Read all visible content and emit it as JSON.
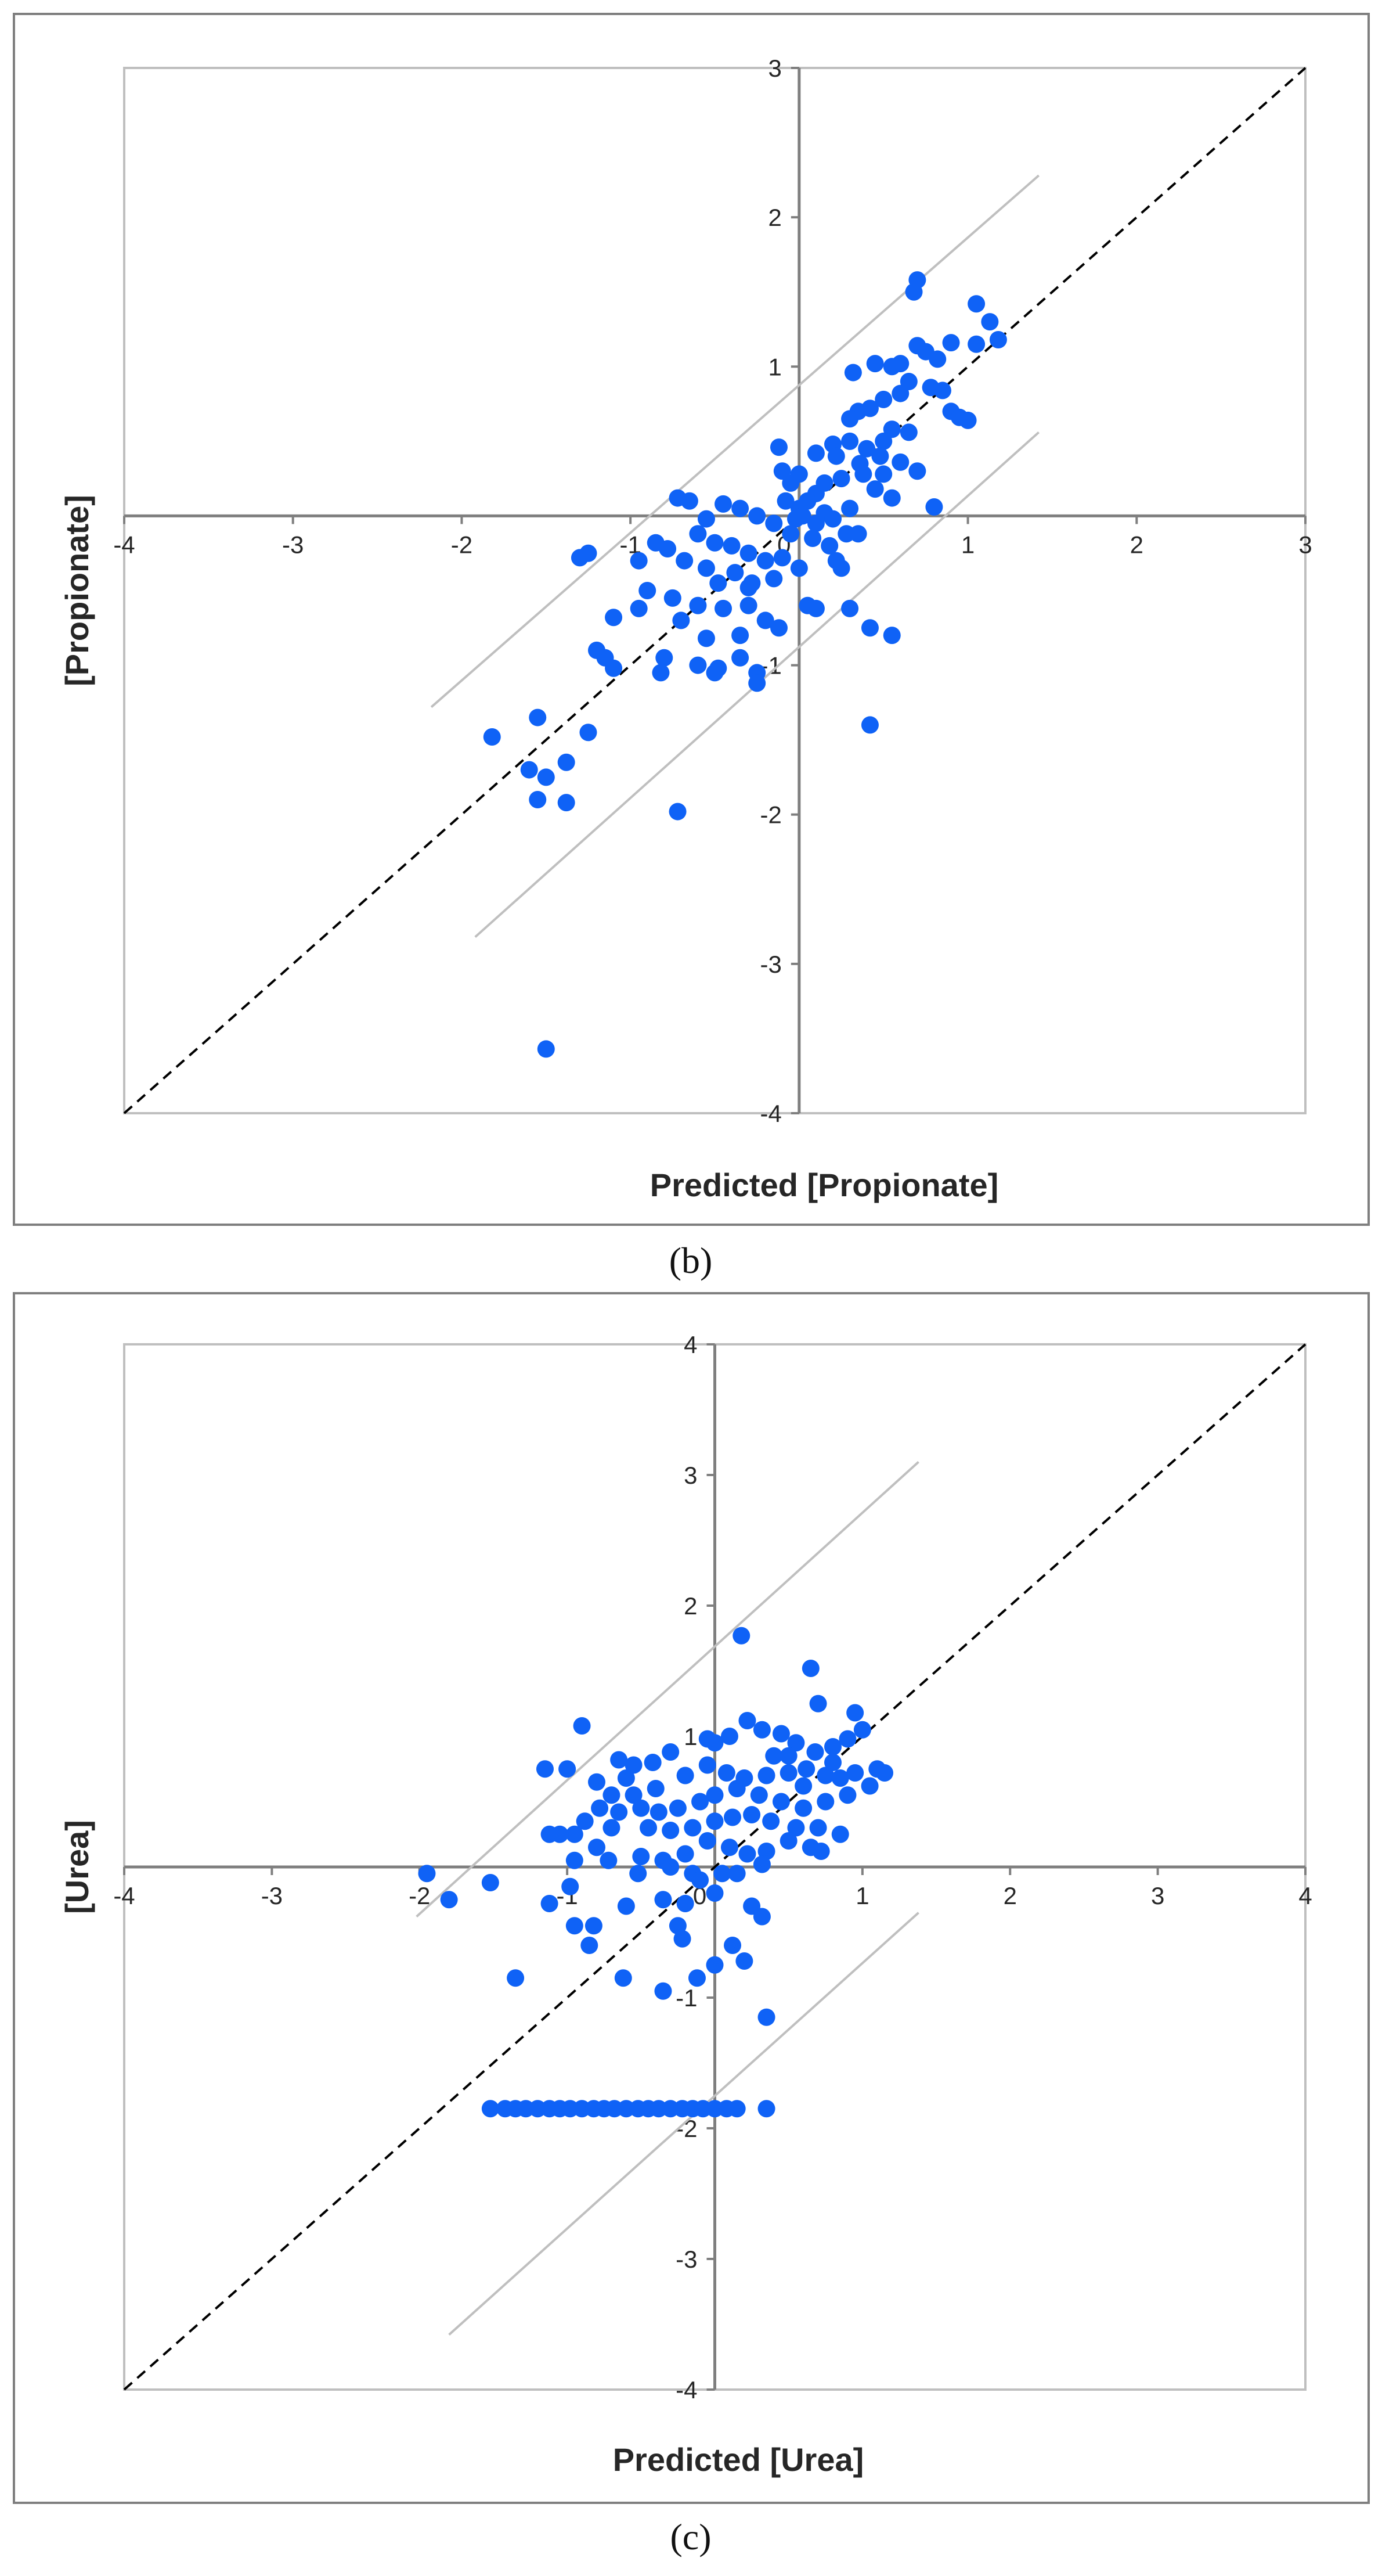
{
  "chart_data": [
    {
      "type": "scatter",
      "panel_label": "(b)",
      "xlabel": "Predicted [Propionate]",
      "ylabel": "[Propionate]",
      "xlim": [
        -4,
        3
      ],
      "ylim": [
        -4,
        3
      ],
      "xticks": [
        -4,
        -3,
        -2,
        -1,
        0,
        1,
        2,
        3
      ],
      "yticks": [
        -4,
        -3,
        -2,
        -1,
        0,
        1,
        2,
        3
      ],
      "identity_line": {
        "x": [
          -4,
          3
        ],
        "y": [
          -4,
          3
        ]
      },
      "band_lines": [
        {
          "x": [
            -2.18,
            1.42
          ],
          "y": [
            -1.28,
            2.28
          ]
        },
        {
          "x": [
            -1.92,
            1.42
          ],
          "y": [
            -2.82,
            0.56
          ]
        }
      ],
      "points": [
        [
          0.7,
          1.58
        ],
        [
          0.68,
          1.5
        ],
        [
          1.05,
          1.42
        ],
        [
          1.13,
          1.3
        ],
        [
          1.18,
          1.18
        ],
        [
          1.05,
          1.15
        ],
        [
          0.9,
          1.16
        ],
        [
          0.7,
          1.14
        ],
        [
          0.75,
          1.1
        ],
        [
          0.6,
          1.02
        ],
        [
          0.55,
          1.0
        ],
        [
          0.45,
          1.02
        ],
        [
          0.82,
          1.05
        ],
        [
          0.32,
          0.96
        ],
        [
          0.65,
          0.9
        ],
        [
          0.78,
          0.86
        ],
        [
          0.85,
          0.84
        ],
        [
          0.6,
          0.82
        ],
        [
          0.5,
          0.78
        ],
        [
          0.42,
          0.72
        ],
        [
          0.35,
          0.7
        ],
        [
          0.3,
          0.65
        ],
        [
          0.9,
          0.7
        ],
        [
          0.95,
          0.66
        ],
        [
          1.0,
          0.64
        ],
        [
          0.55,
          0.58
        ],
        [
          0.65,
          0.56
        ],
        [
          0.5,
          0.5
        ],
        [
          0.4,
          0.45
        ],
        [
          0.3,
          0.5
        ],
        [
          0.2,
          0.48
        ],
        [
          0.1,
          0.42
        ],
        [
          0.22,
          0.4
        ],
        [
          0.36,
          0.35
        ],
        [
          0.6,
          0.36
        ],
        [
          0.7,
          0.3
        ],
        [
          0.5,
          0.28
        ],
        [
          0.25,
          0.25
        ],
        [
          0.15,
          0.22
        ],
        [
          0.0,
          0.28
        ],
        [
          0.1,
          0.15
        ],
        [
          -0.1,
          0.3
        ],
        [
          -0.12,
          0.46
        ],
        [
          -0.05,
          0.22
        ],
        [
          0.05,
          0.1
        ],
        [
          -0.08,
          0.1
        ],
        [
          0.0,
          0.05
        ],
        [
          0.02,
          0.0
        ],
        [
          -0.02,
          -0.02
        ],
        [
          0.1,
          -0.05
        ],
        [
          0.15,
          0.02
        ],
        [
          0.2,
          -0.02
        ],
        [
          0.3,
          0.05
        ],
        [
          0.45,
          0.18
        ],
        [
          0.55,
          0.12
        ],
        [
          0.8,
          0.06
        ],
        [
          0.35,
          -0.12
        ],
        [
          0.18,
          -0.2
        ],
        [
          0.08,
          -0.15
        ],
        [
          -0.05,
          -0.12
        ],
        [
          -0.15,
          -0.05
        ],
        [
          -0.25,
          0.0
        ],
        [
          -0.35,
          0.05
        ],
        [
          -0.45,
          0.08
        ],
        [
          -0.55,
          -0.02
        ],
        [
          -0.65,
          0.1
        ],
        [
          -0.72,
          0.12
        ],
        [
          -0.6,
          -0.12
        ],
        [
          -0.5,
          -0.18
        ],
        [
          -0.4,
          -0.2
        ],
        [
          -0.3,
          -0.25
        ],
        [
          -0.2,
          -0.3
        ],
        [
          -0.1,
          -0.28
        ],
        [
          0.0,
          -0.35
        ],
        [
          0.22,
          -0.3
        ],
        [
          0.25,
          -0.35
        ],
        [
          -0.15,
          -0.42
        ],
        [
          -0.28,
          -0.45
        ],
        [
          -0.38,
          -0.38
        ],
        [
          -0.48,
          -0.45
        ],
        [
          -0.55,
          -0.35
        ],
        [
          -0.68,
          -0.3
        ],
        [
          -0.78,
          -0.22
        ],
        [
          -0.85,
          -0.18
        ],
        [
          -0.95,
          -0.3
        ],
        [
          -1.25,
          -0.25
        ],
        [
          -1.3,
          -0.28
        ],
        [
          -0.9,
          -0.5
        ],
        [
          -0.75,
          -0.55
        ],
        [
          -0.6,
          -0.6
        ],
        [
          -0.45,
          -0.62
        ],
        [
          -0.3,
          -0.6
        ],
        [
          -0.2,
          -0.7
        ],
        [
          0.05,
          -0.6
        ],
        [
          0.1,
          -0.62
        ],
        [
          0.3,
          -0.62
        ],
        [
          0.55,
          -0.8
        ],
        [
          0.42,
          -0.75
        ],
        [
          -0.12,
          -0.75
        ],
        [
          -0.35,
          -0.8
        ],
        [
          -0.55,
          -0.82
        ],
        [
          -0.7,
          -0.7
        ],
        [
          -0.95,
          -0.62
        ],
        [
          -1.1,
          -0.68
        ],
        [
          -1.2,
          -0.9
        ],
        [
          -1.15,
          -0.95
        ],
        [
          -1.1,
          -1.02
        ],
        [
          -0.8,
          -0.95
        ],
        [
          -0.6,
          -1.0
        ],
        [
          -0.48,
          -1.02
        ],
        [
          -0.35,
          -0.95
        ],
        [
          -0.25,
          -1.05
        ],
        [
          -0.82,
          -1.05
        ],
        [
          -0.5,
          -1.05
        ],
        [
          -0.25,
          -1.12
        ],
        [
          0.42,
          -1.4
        ],
        [
          -1.25,
          -1.45
        ],
        [
          -1.55,
          -1.35
        ],
        [
          -1.82,
          -1.48
        ],
        [
          -1.6,
          -1.7
        ],
        [
          -1.5,
          -1.75
        ],
        [
          -1.38,
          -1.65
        ],
        [
          -1.55,
          -1.9
        ],
        [
          -1.38,
          -1.92
        ],
        [
          -0.72,
          -1.98
        ],
        [
          -1.5,
          -3.57
        ],
        [
          -0.3,
          -0.48
        ],
        [
          0.28,
          -0.12
        ],
        [
          0.38,
          0.28
        ],
        [
          0.48,
          0.4
        ]
      ]
    },
    {
      "type": "scatter",
      "panel_label": "(c)",
      "xlabel": "Predicted [Urea]",
      "ylabel": "[Urea]",
      "xlim": [
        -4,
        4
      ],
      "ylim": [
        -4,
        4
      ],
      "xticks": [
        -4,
        -3,
        -2,
        -1,
        0,
        1,
        2,
        3,
        4
      ],
      "yticks": [
        -4,
        -3,
        -2,
        -1,
        0,
        1,
        2,
        3,
        4
      ],
      "identity_line": {
        "x": [
          -4,
          4
        ],
        "y": [
          -4,
          4
        ]
      },
      "band_lines": [
        {
          "x": [
            -2.02,
            1.38
          ],
          "y": [
            -0.38,
            3.1
          ]
        },
        {
          "x": [
            -1.8,
            1.38
          ],
          "y": [
            -3.58,
            -0.35
          ]
        }
      ],
      "points": [
        [
          0.18,
          1.77
        ],
        [
          0.65,
          1.52
        ],
        [
          0.7,
          1.25
        ],
        [
          0.95,
          1.18
        ],
        [
          1.0,
          1.05
        ],
        [
          0.9,
          0.98
        ],
        [
          0.8,
          0.92
        ],
        [
          0.68,
          0.88
        ],
        [
          0.55,
          0.95
        ],
        [
          0.45,
          1.02
        ],
        [
          0.32,
          1.05
        ],
        [
          0.22,
          1.12
        ],
        [
          0.1,
          1.0
        ],
        [
          0.0,
          0.95
        ],
        [
          -0.05,
          0.98
        ],
        [
          -0.3,
          0.88
        ],
        [
          -0.42,
          0.8
        ],
        [
          -0.55,
          0.78
        ],
        [
          -0.65,
          0.82
        ],
        [
          -0.9,
          1.08
        ],
        [
          -1.0,
          0.75
        ],
        [
          -1.15,
          0.75
        ],
        [
          -0.8,
          0.65
        ],
        [
          -0.7,
          0.55
        ],
        [
          -0.55,
          0.55
        ],
        [
          -0.4,
          0.6
        ],
        [
          -0.2,
          0.7
        ],
        [
          -0.05,
          0.78
        ],
        [
          0.08,
          0.72
        ],
        [
          0.2,
          0.68
        ],
        [
          0.35,
          0.7
        ],
        [
          0.5,
          0.72
        ],
        [
          0.62,
          0.75
        ],
        [
          0.75,
          0.7
        ],
        [
          0.85,
          0.68
        ],
        [
          0.95,
          0.72
        ],
        [
          1.1,
          0.75
        ],
        [
          1.15,
          0.72
        ],
        [
          1.05,
          0.62
        ],
        [
          0.9,
          0.55
        ],
        [
          0.75,
          0.5
        ],
        [
          0.6,
          0.45
        ],
        [
          0.45,
          0.5
        ],
        [
          0.3,
          0.55
        ],
        [
          0.15,
          0.6
        ],
        [
          0.0,
          0.55
        ],
        [
          -0.1,
          0.5
        ],
        [
          -0.25,
          0.45
        ],
        [
          -0.38,
          0.42
        ],
        [
          -0.5,
          0.45
        ],
        [
          -0.65,
          0.42
        ],
        [
          -0.78,
          0.45
        ],
        [
          -0.88,
          0.35
        ],
        [
          -0.95,
          0.25
        ],
        [
          -1.05,
          0.25
        ],
        [
          -1.12,
          0.25
        ],
        [
          -0.7,
          0.3
        ],
        [
          -0.45,
          0.3
        ],
        [
          -0.3,
          0.28
        ],
        [
          -0.15,
          0.3
        ],
        [
          0.0,
          0.35
        ],
        [
          0.12,
          0.38
        ],
        [
          0.25,
          0.4
        ],
        [
          0.38,
          0.35
        ],
        [
          0.55,
          0.3
        ],
        [
          0.7,
          0.3
        ],
        [
          0.85,
          0.25
        ],
        [
          -0.05,
          0.2
        ],
        [
          0.1,
          0.15
        ],
        [
          0.22,
          0.1
        ],
        [
          0.35,
          0.12
        ],
        [
          0.5,
          0.2
        ],
        [
          0.65,
          0.15
        ],
        [
          0.72,
          0.12
        ],
        [
          -0.2,
          0.1
        ],
        [
          -0.35,
          0.05
        ],
        [
          -0.5,
          0.08
        ],
        [
          -0.72,
          0.05
        ],
        [
          -0.95,
          0.05
        ],
        [
          -0.3,
          0.0
        ],
        [
          -0.15,
          -0.05
        ],
        [
          0.05,
          -0.05
        ],
        [
          0.15,
          -0.05
        ],
        [
          0.32,
          0.02
        ],
        [
          -1.95,
          -0.05
        ],
        [
          -1.52,
          -0.12
        ],
        [
          -0.98,
          -0.15
        ],
        [
          -0.52,
          -0.05
        ],
        [
          -0.1,
          -0.1
        ],
        [
          0.0,
          -0.2
        ],
        [
          0.25,
          -0.3
        ],
        [
          0.32,
          -0.38
        ],
        [
          -1.8,
          -0.25
        ],
        [
          -1.12,
          -0.28
        ],
        [
          -0.6,
          -0.3
        ],
        [
          -0.35,
          -0.25
        ],
        [
          -0.2,
          -0.28
        ],
        [
          -0.95,
          -0.45
        ],
        [
          -0.82,
          -0.45
        ],
        [
          -0.22,
          -0.55
        ],
        [
          -0.25,
          -0.45
        ],
        [
          0.12,
          -0.6
        ],
        [
          0.2,
          -0.72
        ],
        [
          -1.35,
          -0.85
        ],
        [
          -0.85,
          -0.6
        ],
        [
          -0.62,
          -0.85
        ],
        [
          -0.12,
          -0.85
        ],
        [
          -0.35,
          -0.95
        ],
        [
          0.0,
          -0.75
        ],
        [
          0.35,
          -1.15
        ],
        [
          -1.52,
          -1.85
        ],
        [
          -1.42,
          -1.85
        ],
        [
          -1.35,
          -1.85
        ],
        [
          -1.28,
          -1.85
        ],
        [
          -1.2,
          -1.85
        ],
        [
          -1.12,
          -1.85
        ],
        [
          -1.05,
          -1.85
        ],
        [
          -0.98,
          -1.85
        ],
        [
          -0.9,
          -1.85
        ],
        [
          -0.82,
          -1.85
        ],
        [
          -0.75,
          -1.85
        ],
        [
          -0.68,
          -1.85
        ],
        [
          -0.6,
          -1.85
        ],
        [
          -0.52,
          -1.85
        ],
        [
          -0.45,
          -1.85
        ],
        [
          -0.38,
          -1.85
        ],
        [
          -0.3,
          -1.85
        ],
        [
          -0.22,
          -1.85
        ],
        [
          -0.15,
          -1.85
        ],
        [
          -0.08,
          -1.85
        ],
        [
          0.0,
          -1.85
        ],
        [
          0.08,
          -1.85
        ],
        [
          0.15,
          -1.85
        ],
        [
          0.35,
          -1.85
        ],
        [
          0.5,
          0.85
        ],
        [
          0.6,
          0.62
        ],
        [
          0.8,
          0.8
        ],
        [
          -0.6,
          0.68
        ],
        [
          -0.8,
          0.15
        ],
        [
          0.4,
          0.85
        ]
      ]
    }
  ]
}
